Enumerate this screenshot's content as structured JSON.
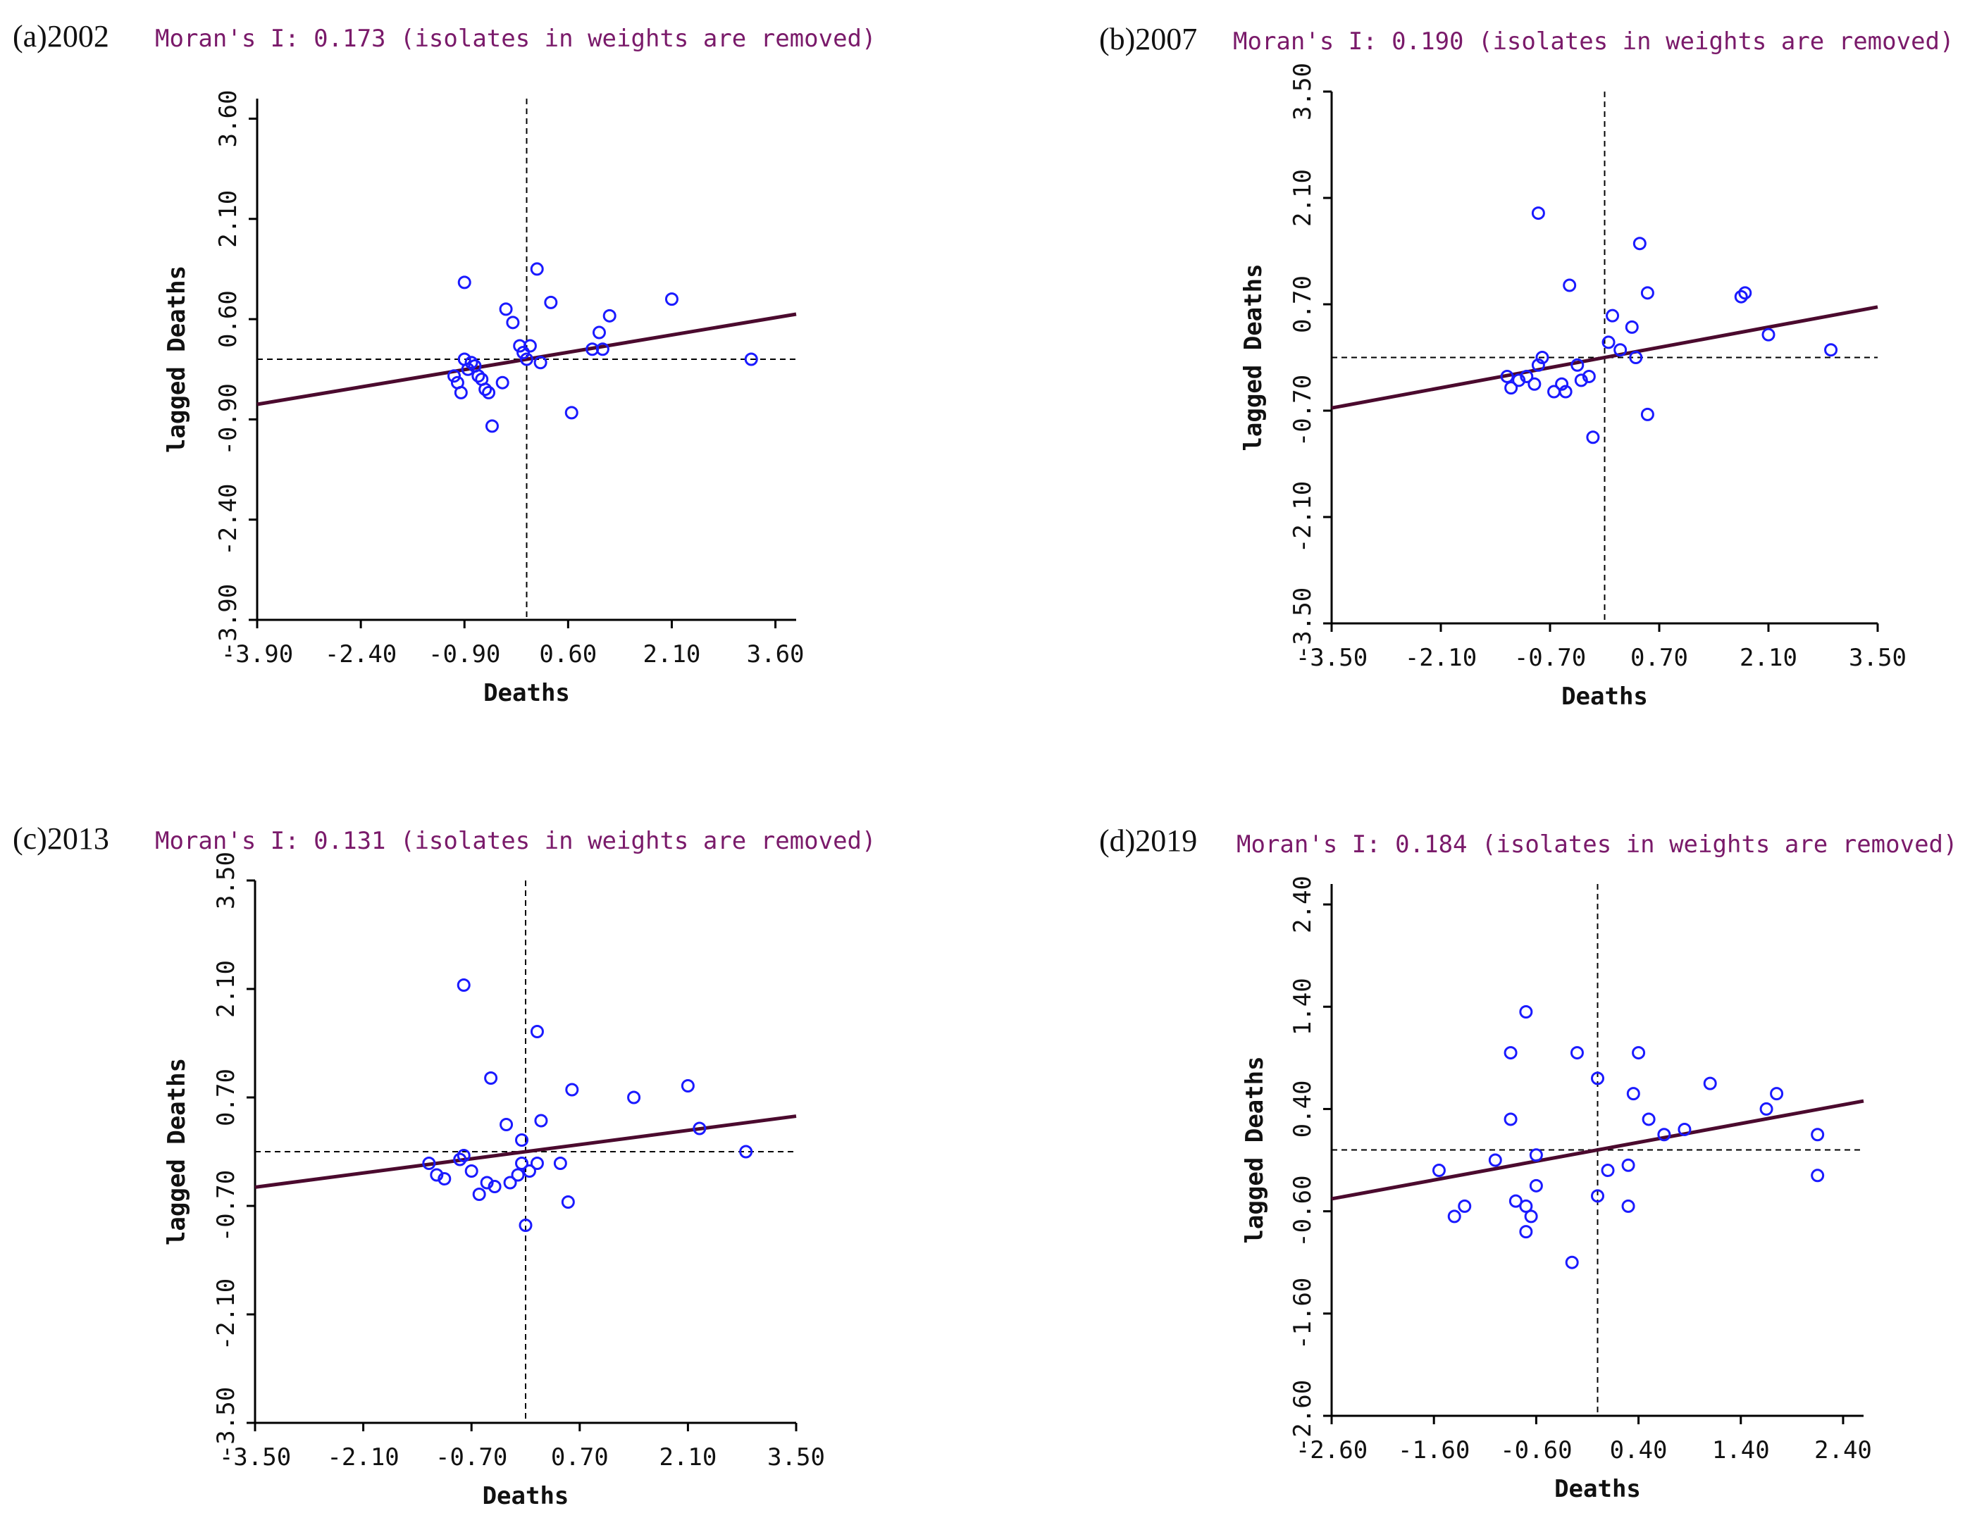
{
  "figure": {
    "colors": {
      "point": "#1a1aff",
      "line": "#4b0a2e",
      "axis": "#000000",
      "title": "#7a1a6a",
      "text": "#111111"
    }
  },
  "chart_data": [
    {
      "type": "scatter",
      "panel_label": "(a)2002",
      "title": "Moran's I: 0.173 (isolates in weights are removed)",
      "xlabel": "Deaths",
      "ylabel": "lagged Deaths",
      "xlim": [
        -3.9,
        3.9
      ],
      "ylim": [
        -3.9,
        3.9
      ],
      "xticks": [
        "-3.90",
        "-2.40",
        "-0.90",
        "0.60",
        "2.10",
        "3.60"
      ],
      "yticks": [
        "-3.90",
        "-2.40",
        "-0.90",
        "0.60",
        "2.10",
        "3.60"
      ],
      "tick_values": [
        -3.9,
        -2.4,
        -0.9,
        0.6,
        2.1,
        3.6
      ],
      "slope": 0.173,
      "points": [
        [
          -0.9,
          1.15
        ],
        [
          -1.05,
          -0.25
        ],
        [
          -1.0,
          -0.35
        ],
        [
          -0.95,
          -0.5
        ],
        [
          -0.85,
          -0.15
        ],
        [
          -0.8,
          -0.05
        ],
        [
          -0.75,
          -0.1
        ],
        [
          -0.7,
          -0.25
        ],
        [
          -0.65,
          -0.3
        ],
        [
          -0.6,
          -0.45
        ],
        [
          -0.55,
          -0.5
        ],
        [
          -0.5,
          -1.0
        ],
        [
          -0.35,
          -0.35
        ],
        [
          -0.3,
          0.75
        ],
        [
          -0.2,
          0.55
        ],
        [
          -0.1,
          0.2
        ],
        [
          -0.05,
          0.1
        ],
        [
          0.0,
          0.0
        ],
        [
          0.15,
          1.35
        ],
        [
          0.2,
          -0.05
        ],
        [
          0.35,
          0.85
        ],
        [
          0.65,
          -0.8
        ],
        [
          0.95,
          0.15
        ],
        [
          1.05,
          0.4
        ],
        [
          1.1,
          0.15
        ],
        [
          1.2,
          0.65
        ],
        [
          2.1,
          0.9
        ],
        [
          3.25,
          0.0
        ],
        [
          -0.9,
          0.0
        ],
        [
          0.05,
          0.2
        ]
      ]
    },
    {
      "type": "scatter",
      "panel_label": "(b)2007",
      "title": "Moran's I: 0.190 (isolates in weights are removed)",
      "xlabel": "Deaths",
      "ylabel": "lagged Deaths",
      "xlim": [
        -3.5,
        3.5
      ],
      "ylim": [
        -3.5,
        3.5
      ],
      "xticks": [
        "-3.50",
        "-2.10",
        "-0.70",
        "0.70",
        "2.10",
        "3.50"
      ],
      "yticks": [
        "-3.50",
        "-2.10",
        "-0.70",
        "0.70",
        "2.10",
        "3.50"
      ],
      "tick_values": [
        -3.5,
        -2.1,
        -0.7,
        0.7,
        2.1,
        3.5
      ],
      "slope": 0.19,
      "points": [
        [
          -0.85,
          1.9
        ],
        [
          -0.45,
          0.95
        ],
        [
          0.45,
          1.5
        ],
        [
          0.55,
          0.85
        ],
        [
          0.55,
          -0.75
        ],
        [
          1.75,
          0.8
        ],
        [
          1.8,
          0.85
        ],
        [
          2.1,
          0.3
        ],
        [
          2.9,
          0.1
        ],
        [
          0.1,
          0.55
        ],
        [
          0.35,
          0.4
        ],
        [
          0.2,
          0.1
        ],
        [
          0.4,
          0.0
        ],
        [
          -1.25,
          -0.25
        ],
        [
          -1.2,
          -0.4
        ],
        [
          -1.1,
          -0.3
        ],
        [
          -1.0,
          -0.25
        ],
        [
          -0.9,
          -0.35
        ],
        [
          -0.85,
          -0.1
        ],
        [
          -0.8,
          0.0
        ],
        [
          -0.65,
          -0.45
        ],
        [
          -0.55,
          -0.35
        ],
        [
          -0.5,
          -0.45
        ],
        [
          -0.35,
          -0.1
        ],
        [
          -0.3,
          -0.3
        ],
        [
          -0.2,
          -0.25
        ],
        [
          -0.15,
          -1.05
        ],
        [
          0.05,
          0.2
        ]
      ]
    },
    {
      "type": "scatter",
      "panel_label": "(c)2013",
      "title": "Moran's I: 0.131 (isolates in weights are removed)",
      "xlabel": "Deaths",
      "ylabel": "lagged Deaths",
      "xlim": [
        -3.5,
        3.5
      ],
      "ylim": [
        -3.5,
        3.5
      ],
      "xticks": [
        "-3.50",
        "-2.10",
        "-0.70",
        "0.70",
        "2.10",
        "3.50"
      ],
      "yticks": [
        "-3.50",
        "-2.10",
        "-0.70",
        "0.70",
        "2.10",
        "3.50"
      ],
      "tick_values": [
        -3.5,
        -2.1,
        -0.7,
        0.7,
        2.1,
        3.5
      ],
      "slope": 0.131,
      "points": [
        [
          -0.8,
          2.15
        ],
        [
          0.15,
          1.55
        ],
        [
          -0.45,
          0.95
        ],
        [
          0.6,
          0.8
        ],
        [
          1.4,
          0.7
        ],
        [
          2.1,
          0.85
        ],
        [
          2.25,
          0.3
        ],
        [
          2.85,
          0.0
        ],
        [
          -0.25,
          0.35
        ],
        [
          0.2,
          0.4
        ],
        [
          -1.25,
          -0.15
        ],
        [
          -1.15,
          -0.3
        ],
        [
          -1.05,
          -0.35
        ],
        [
          -0.85,
          -0.1
        ],
        [
          -0.8,
          -0.05
        ],
        [
          -0.7,
          -0.25
        ],
        [
          -0.6,
          -0.55
        ],
        [
          -0.5,
          -0.4
        ],
        [
          -0.4,
          -0.45
        ],
        [
          -0.2,
          -0.4
        ],
        [
          -0.1,
          -0.3
        ],
        [
          -0.05,
          -0.15
        ],
        [
          0.05,
          -0.25
        ],
        [
          0.15,
          -0.15
        ],
        [
          0.45,
          -0.15
        ],
        [
          0.55,
          -0.65
        ],
        [
          -0.05,
          0.15
        ],
        [
          0.0,
          -0.95
        ]
      ]
    },
    {
      "type": "scatter",
      "panel_label": "(d)2019",
      "title": "Moran's I: 0.184 (isolates in weights are removed)",
      "xlabel": "Deaths",
      "ylabel": "lagged Deaths",
      "xlim": [
        -2.6,
        2.6
      ],
      "ylim": [
        -2.6,
        2.6
      ],
      "xticks": [
        "-2.60",
        "-1.60",
        "-0.60",
        "0.40",
        "1.40",
        "2.40"
      ],
      "yticks": [
        "-2.60",
        "-1.60",
        "-0.60",
        "0.40",
        "1.40",
        "2.40"
      ],
      "tick_values": [
        -2.6,
        -1.6,
        -0.6,
        0.4,
        1.4,
        2.4
      ],
      "slope": 0.184,
      "points": [
        [
          -0.7,
          1.35
        ],
        [
          -0.85,
          0.95
        ],
        [
          -0.2,
          0.95
        ],
        [
          0.4,
          0.95
        ],
        [
          1.1,
          0.65
        ],
        [
          0.0,
          0.7
        ],
        [
          0.35,
          0.55
        ],
        [
          -0.85,
          0.3
        ],
        [
          0.5,
          0.3
        ],
        [
          0.65,
          0.15
        ],
        [
          0.85,
          0.2
        ],
        [
          1.65,
          0.4
        ],
        [
          1.75,
          0.55
        ],
        [
          2.15,
          0.15
        ],
        [
          2.15,
          -0.25
        ],
        [
          -1.55,
          -0.2
        ],
        [
          -1.4,
          -0.65
        ],
        [
          -1.3,
          -0.55
        ],
        [
          -1.0,
          -0.1
        ],
        [
          -0.8,
          -0.5
        ],
        [
          -0.7,
          -0.55
        ],
        [
          -0.7,
          -0.8
        ],
        [
          -0.65,
          -0.65
        ],
        [
          -0.6,
          -0.05
        ],
        [
          -0.6,
          -0.35
        ],
        [
          -0.25,
          -1.1
        ],
        [
          0.0,
          -0.45
        ],
        [
          0.1,
          -0.2
        ],
        [
          0.3,
          -0.15
        ],
        [
          0.3,
          -0.55
        ]
      ]
    }
  ]
}
